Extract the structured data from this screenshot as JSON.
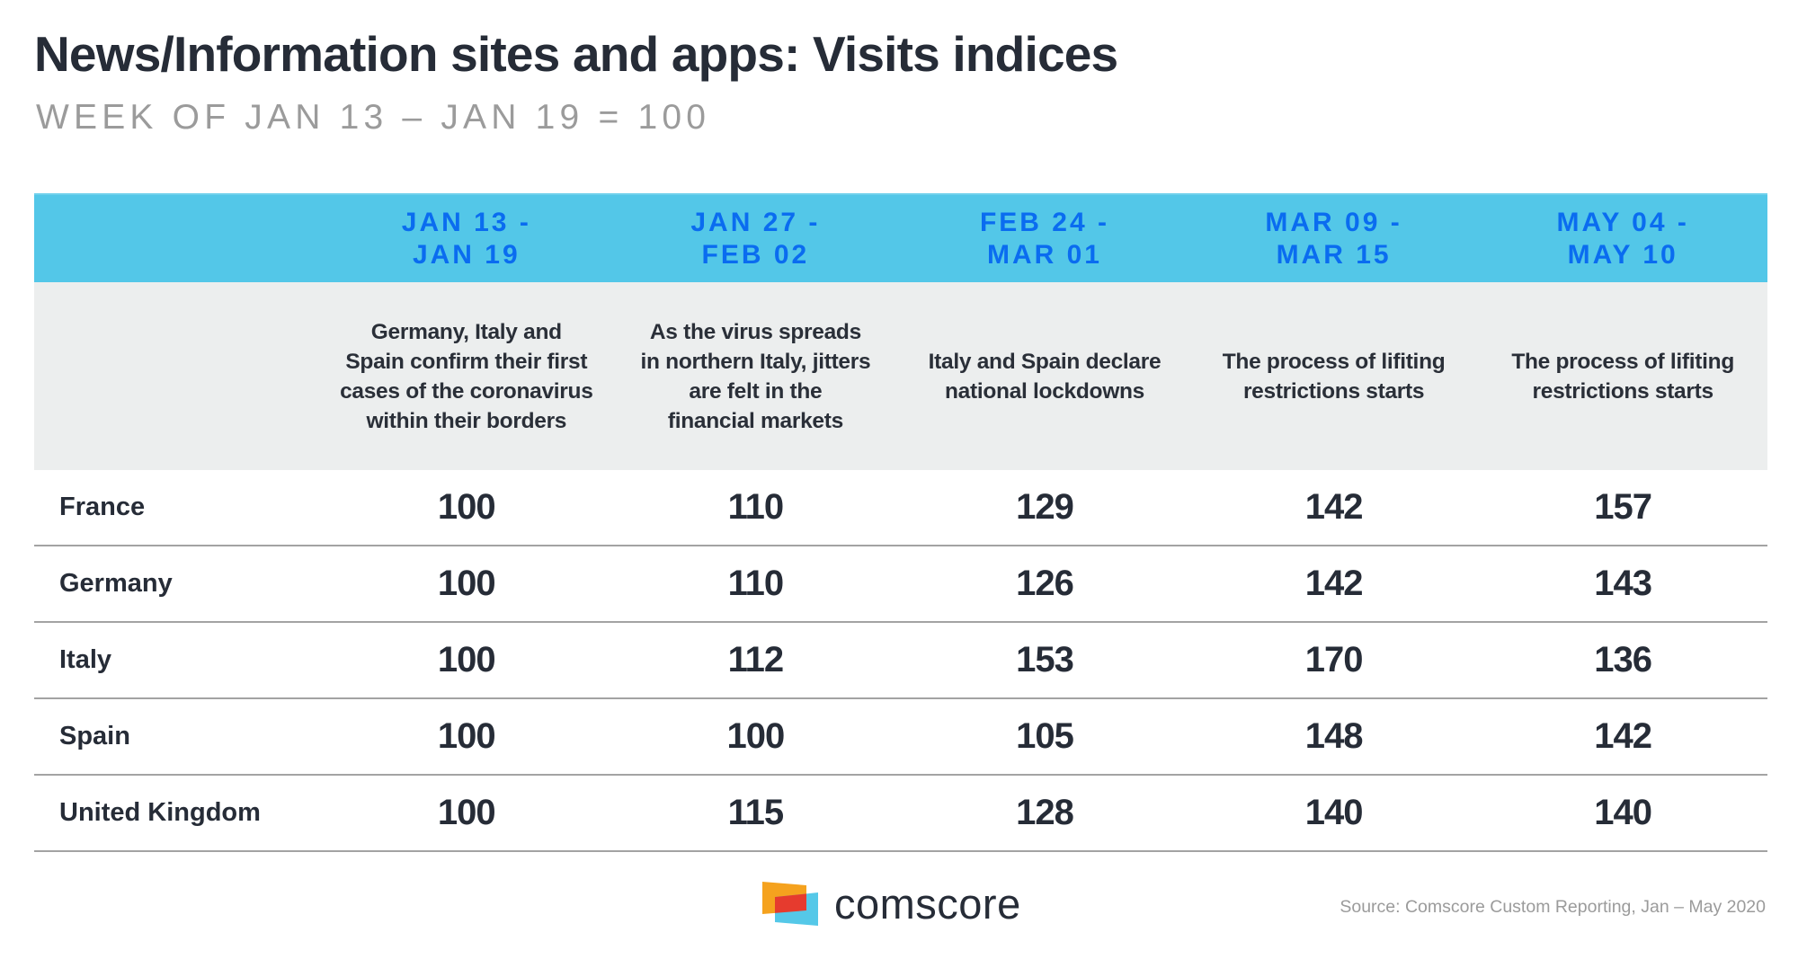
{
  "title": "News/Information sites and apps: Visits indices",
  "subtitle": "WEEK OF JAN 13 – JAN 19 = 100",
  "colors": {
    "header_band": "#53c7e8",
    "header_text": "#0a6cf0",
    "desc_band": "#eceeee",
    "text_dark": "#262c37",
    "text_gray": "#9b9b9b",
    "divider": "#a3a3a3",
    "logo_orange": "#f5a21e",
    "logo_cyan": "#55c8e8",
    "logo_red": "#e63b2e"
  },
  "table": {
    "columns": [
      {
        "header": [
          "JAN 13 -",
          "JAN 19"
        ],
        "description": [
          "Germany, Italy and",
          "Spain confirm their first",
          "cases of the coronavirus",
          "within their borders"
        ]
      },
      {
        "header": [
          "JAN 27 -",
          "FEB 02"
        ],
        "description": [
          "As the virus spreads",
          "in northern Italy, jitters",
          "are felt in the",
          "financial markets"
        ]
      },
      {
        "header": [
          "FEB 24 -",
          "MAR 01"
        ],
        "description": [
          "Italy and Spain declare",
          "national lockdowns"
        ]
      },
      {
        "header": [
          "MAR 09 -",
          "MAR 15"
        ],
        "description": [
          "The process of lifiting",
          "restrictions starts"
        ]
      },
      {
        "header": [
          "MAY 04 -",
          "MAY 10"
        ],
        "description": [
          "The process of lifiting",
          "restrictions starts"
        ]
      }
    ],
    "rows": [
      {
        "country": "France",
        "values": [
          "100",
          "110",
          "129",
          "142",
          "157"
        ]
      },
      {
        "country": "Germany",
        "values": [
          "100",
          "110",
          "126",
          "142",
          "143"
        ]
      },
      {
        "country": "Italy",
        "values": [
          "100",
          "112",
          "153",
          "170",
          "136"
        ]
      },
      {
        "country": "Spain",
        "values": [
          "100",
          "100",
          "105",
          "148",
          "142"
        ]
      },
      {
        "country": "United Kingdom",
        "values": [
          "100",
          "115",
          "128",
          "140",
          "140"
        ]
      }
    ]
  },
  "footer": {
    "logo_text": "comscore",
    "logo_icon": "comscore-logo-icon",
    "source": "Source: Comscore Custom Reporting, Jan – May 2020"
  }
}
